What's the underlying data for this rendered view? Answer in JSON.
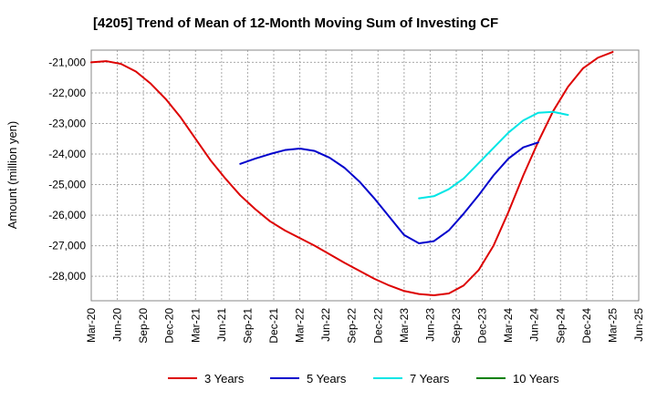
{
  "chart_data": {
    "type": "line",
    "title": "[4205]  Trend of Mean of 12-Month Moving Sum of Investing CF",
    "ylabel": "Amount (million yen)",
    "xlabel": "",
    "ylim": [
      -28800,
      -20600
    ],
    "yticks": [
      -21000,
      -22000,
      -23000,
      -24000,
      -25000,
      -26000,
      -27000,
      -28000
    ],
    "ytick_labels": [
      "-21,000",
      "-22,000",
      "-23,000",
      "-24,000",
      "-25,000",
      "-26,000",
      "-27,000",
      "-28,000"
    ],
    "xticks": [
      "Mar-20",
      "Jun-20",
      "Sep-20",
      "Dec-20",
      "Mar-21",
      "Jun-21",
      "Sep-21",
      "Dec-21",
      "Mar-22",
      "Jun-22",
      "Sep-22",
      "Dec-22",
      "Mar-23",
      "Jun-23",
      "Sep-23",
      "Dec-23",
      "Mar-24",
      "Jun-24",
      "Sep-24",
      "Dec-24",
      "Mar-25",
      "Jun-25"
    ],
    "grid": true,
    "legend_position": "bottom",
    "series": [
      {
        "name": "3 Years",
        "color": "#dd0000",
        "points": [
          [
            0,
            -21000
          ],
          [
            1,
            -20960
          ],
          [
            2,
            -21050
          ],
          [
            3,
            -21300
          ],
          [
            4,
            -21700
          ],
          [
            5,
            -22200
          ],
          [
            6,
            -22800
          ],
          [
            7,
            -23500
          ],
          [
            8,
            -24200
          ],
          [
            9,
            -24800
          ],
          [
            10,
            -25350
          ],
          [
            11,
            -25800
          ],
          [
            12,
            -26200
          ],
          [
            13,
            -26500
          ],
          [
            14,
            -26750
          ],
          [
            15,
            -27000
          ],
          [
            16,
            -27280
          ],
          [
            17,
            -27560
          ],
          [
            18,
            -27820
          ],
          [
            19,
            -28080
          ],
          [
            20,
            -28300
          ],
          [
            21,
            -28480
          ],
          [
            22,
            -28580
          ],
          [
            23,
            -28620
          ],
          [
            24,
            -28560
          ],
          [
            25,
            -28300
          ],
          [
            26,
            -27800
          ],
          [
            27,
            -27000
          ],
          [
            28,
            -25900
          ],
          [
            29,
            -24700
          ],
          [
            30,
            -23600
          ],
          [
            31,
            -22600
          ],
          [
            32,
            -21800
          ],
          [
            33,
            -21200
          ],
          [
            34,
            -20850
          ],
          [
            35,
            -20660
          ]
        ]
      },
      {
        "name": "5 Years",
        "color": "#0000cc",
        "points": [
          [
            10,
            -24320
          ],
          [
            11,
            -24150
          ],
          [
            12,
            -24000
          ],
          [
            13,
            -23870
          ],
          [
            14,
            -23820
          ],
          [
            15,
            -23900
          ],
          [
            16,
            -24120
          ],
          [
            17,
            -24450
          ],
          [
            18,
            -24900
          ],
          [
            19,
            -25450
          ],
          [
            20,
            -26050
          ],
          [
            21,
            -26650
          ],
          [
            22,
            -26920
          ],
          [
            23,
            -26850
          ],
          [
            24,
            -26500
          ],
          [
            25,
            -25950
          ],
          [
            26,
            -25350
          ],
          [
            27,
            -24700
          ],
          [
            28,
            -24150
          ],
          [
            29,
            -23780
          ],
          [
            30,
            -23620
          ]
        ]
      },
      {
        "name": "7 Years",
        "color": "#00e5e5",
        "points": [
          [
            22,
            -25450
          ],
          [
            23,
            -25380
          ],
          [
            24,
            -25150
          ],
          [
            25,
            -24800
          ],
          [
            26,
            -24300
          ],
          [
            27,
            -23800
          ],
          [
            28,
            -23300
          ],
          [
            29,
            -22900
          ],
          [
            30,
            -22650
          ],
          [
            31,
            -22620
          ],
          [
            32,
            -22720
          ]
        ]
      },
      {
        "name": "10 Years",
        "color": "#008000",
        "points": []
      }
    ]
  }
}
